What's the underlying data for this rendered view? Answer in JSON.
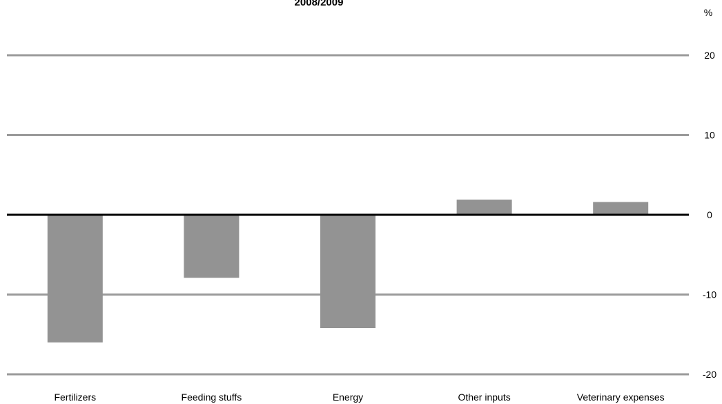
{
  "chart_data": {
    "type": "bar",
    "title": "2008/2009",
    "ylabel": "%",
    "xlabel": "",
    "categories": [
      "Fertilizers",
      "Feeding stuffs",
      "Energy",
      "Other inputs",
      "Veterinary expenses"
    ],
    "values": [
      -16.0,
      -7.9,
      -14.2,
      1.9,
      1.6
    ],
    "ylim": [
      -20,
      20
    ],
    "yticks": [
      20,
      10,
      0,
      -10,
      -20
    ],
    "y_axis_position": "right",
    "grid": true,
    "colors": {
      "bar": "#939393",
      "grid": "#9a9a9a",
      "zero_line": "#000000",
      "text": "#000000"
    }
  }
}
